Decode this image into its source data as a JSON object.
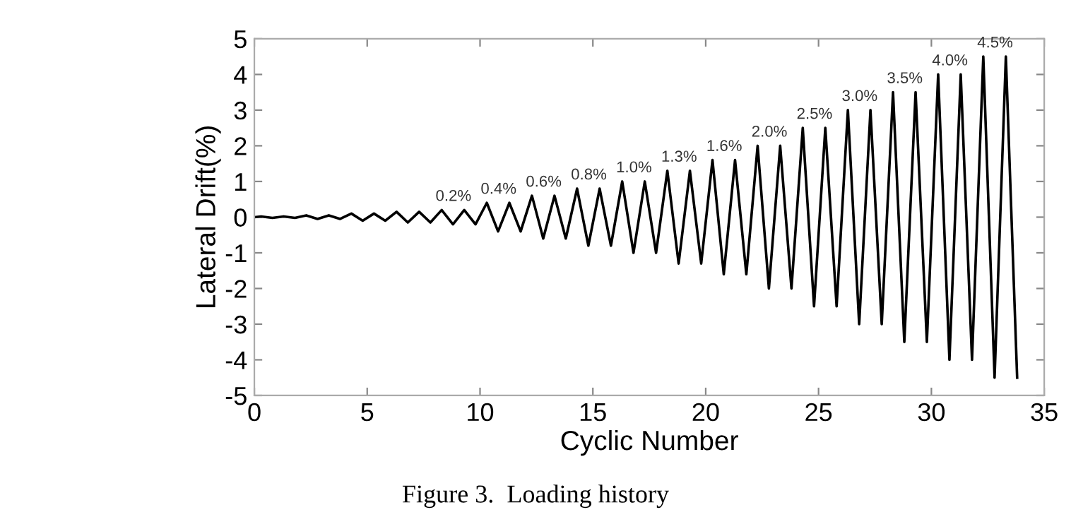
{
  "chart_data": {
    "type": "line",
    "xlabel": "Cyclic Number",
    "ylabel": "Lateral Drift(%)",
    "color": "#000000",
    "x": [
      0,
      0.3,
      0.8,
      1.3,
      1.8,
      2.3,
      2.8,
      3.3,
      3.8,
      4.3,
      4.8,
      5.3,
      5.8,
      6.3,
      6.8,
      7.3,
      7.8,
      8.3,
      8.8,
      9.3,
      9.8,
      10.3,
      10.8,
      11.3,
      11.8,
      12.3,
      12.8,
      13.3,
      13.8,
      14.3,
      14.8,
      15.3,
      15.8,
      16.3,
      16.8,
      17.3,
      17.8,
      18.3,
      18.8,
      19.3,
      19.8,
      20.3,
      20.8,
      21.3,
      21.8,
      22.3,
      22.8,
      23.3,
      23.8,
      24.3,
      24.8,
      25.3,
      25.8,
      26.3,
      26.8,
      27.3,
      27.8,
      28.3,
      28.8,
      29.3,
      29.8,
      30.3,
      30.8,
      31.3,
      31.8,
      32.3,
      32.8,
      33.3,
      33.8
    ],
    "values": [
      0,
      0.02,
      -0.02,
      0.02,
      -0.02,
      0.05,
      -0.05,
      0.05,
      -0.05,
      0.1,
      -0.1,
      0.1,
      -0.1,
      0.15,
      -0.15,
      0.15,
      -0.15,
      0.2,
      -0.2,
      0.2,
      -0.2,
      0.4,
      -0.4,
      0.4,
      -0.4,
      0.6,
      -0.6,
      0.6,
      -0.6,
      0.8,
      -0.8,
      0.8,
      -0.8,
      1.0,
      -1.0,
      1.0,
      -1.0,
      1.3,
      -1.3,
      1.3,
      -1.3,
      1.6,
      -1.6,
      1.6,
      -1.6,
      2.0,
      -2.0,
      2.0,
      -2.0,
      2.5,
      -2.5,
      2.5,
      -2.5,
      3.0,
      -3.0,
      3.0,
      -3.0,
      3.5,
      -3.5,
      3.5,
      -3.5,
      4.0,
      -4.0,
      4.0,
      -4.0,
      4.5,
      -4.5,
      4.5,
      -4.5
    ],
    "xlim": [
      0,
      35
    ],
    "xticks": [
      0,
      5,
      10,
      15,
      20,
      25,
      30,
      35
    ],
    "ylim": [
      -5,
      5
    ],
    "yticks": [
      -5,
      -4,
      -3,
      -2,
      -1,
      0,
      1,
      2,
      3,
      4,
      5
    ],
    "grid": false,
    "legend": false,
    "marker": "none",
    "line_style": "solid",
    "annotations": [
      {
        "text": "0.2%",
        "x": 8.3,
        "y": 0.2
      },
      {
        "text": "0.4%",
        "x": 10.3,
        "y": 0.4
      },
      {
        "text": "0.6%",
        "x": 12.3,
        "y": 0.6
      },
      {
        "text": "0.8%",
        "x": 14.3,
        "y": 0.8
      },
      {
        "text": "1.0%",
        "x": 16.3,
        "y": 1.0
      },
      {
        "text": "1.3%",
        "x": 18.3,
        "y": 1.3
      },
      {
        "text": "1.6%",
        "x": 20.3,
        "y": 1.6
      },
      {
        "text": "2.0%",
        "x": 22.3,
        "y": 2.0
      },
      {
        "text": "2.5%",
        "x": 24.3,
        "y": 2.5
      },
      {
        "text": "3.0%",
        "x": 26.3,
        "y": 3.0
      },
      {
        "text": "3.5%",
        "x": 28.3,
        "y": 3.5
      },
      {
        "text": "4.0%",
        "x": 30.3,
        "y": 4.0
      },
      {
        "text": "4.5%",
        "x": 32.3,
        "y": 4.5
      },
      "Figure 3.  Loading history"
    ]
  }
}
